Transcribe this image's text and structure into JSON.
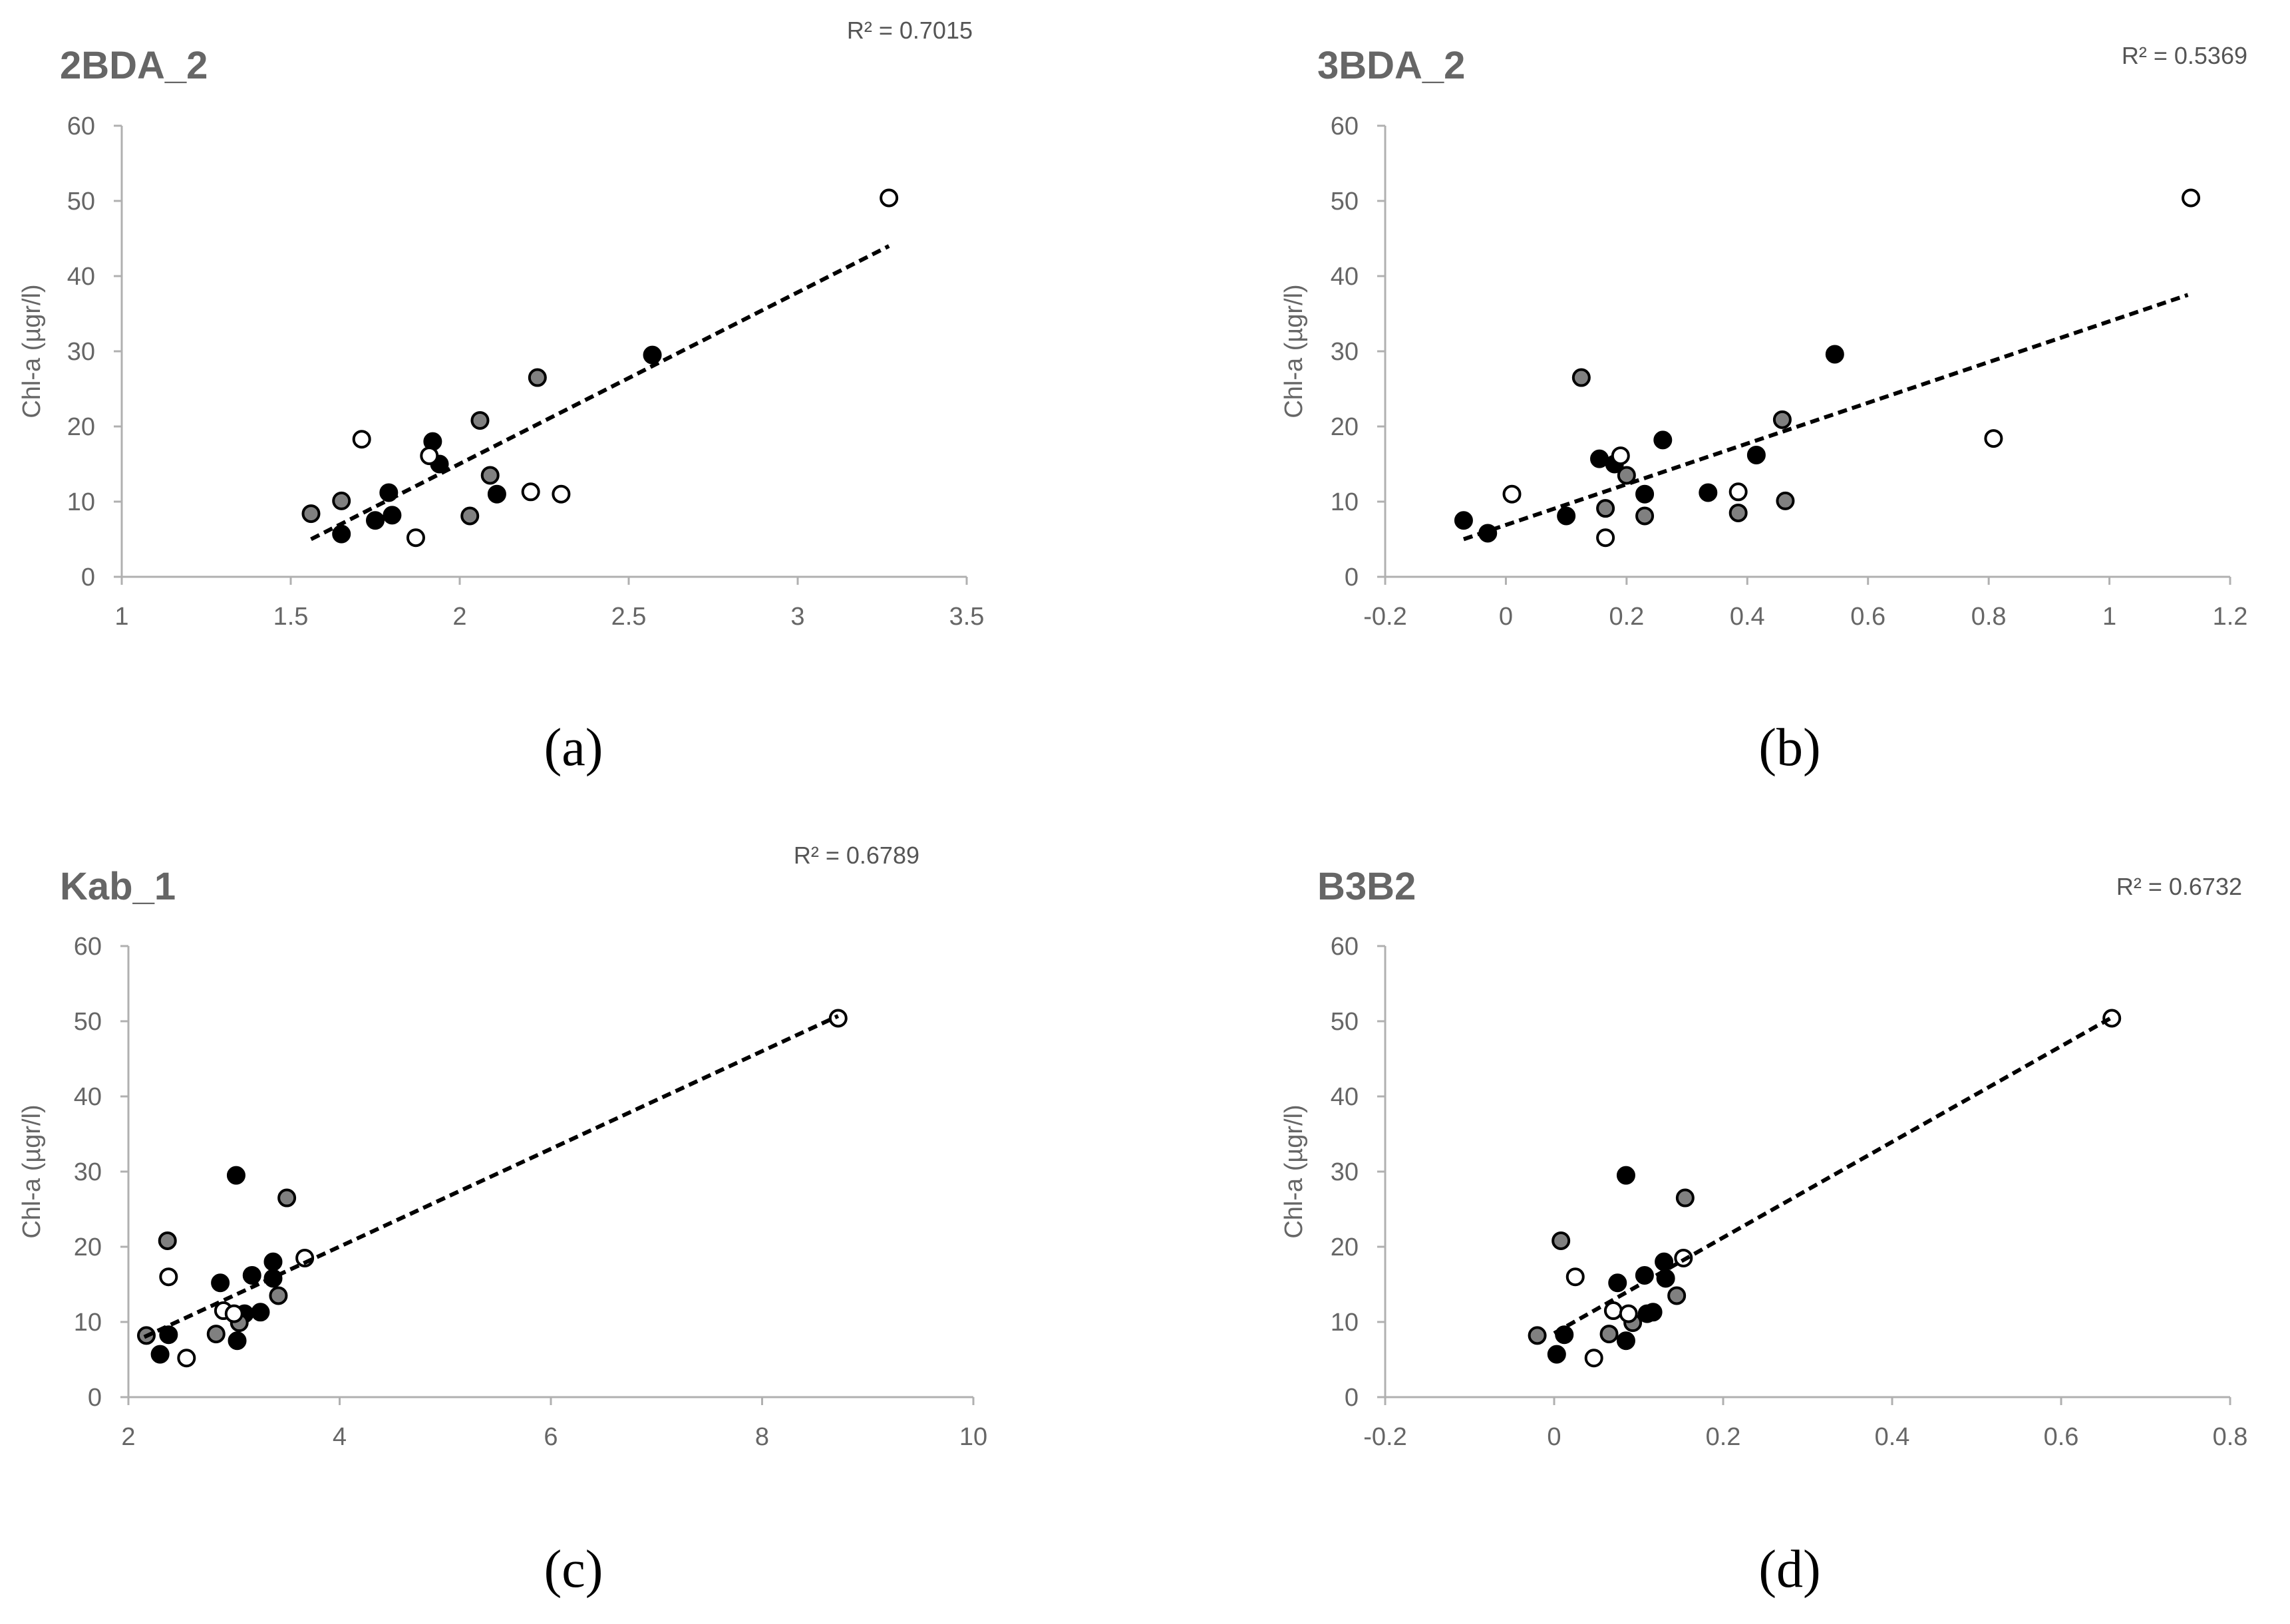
{
  "figure": {
    "description_labels": [
      "(a)",
      "(b)",
      "(c)",
      "(d)"
    ]
  },
  "chart_data": [
    {
      "type": "scatter",
      "title": "2BDA_2",
      "caption": "(a)",
      "r2": "R² = 0.7015",
      "ylabel": "Chl-a (µgr/l)",
      "xlabel": "",
      "xlim": [
        1,
        3.5
      ],
      "ylim": [
        0,
        60
      ],
      "xticks": [
        "1",
        "1.5",
        "2",
        "2.5",
        "3",
        "3.5"
      ],
      "xtick_values": [
        1,
        1.5,
        2,
        2.5,
        3,
        3.5
      ],
      "yticks": [
        "0",
        "10",
        "20",
        "30",
        "40",
        "50",
        "60"
      ],
      "ytick_values": [
        0,
        10,
        20,
        30,
        40,
        50,
        60
      ],
      "trendline": {
        "x": [
          1.56,
          3.27
        ],
        "y": [
          5.0,
          44.0
        ]
      },
      "series": [
        {
          "name": "black",
          "color": "#000000",
          "points": [
            [
              1.92,
              18
            ],
            [
              1.94,
              15
            ],
            [
              1.79,
              11.2
            ],
            [
              1.8,
              8.2
            ],
            [
              1.75,
              7.5
            ],
            [
              1.65,
              5.7
            ],
            [
              2.11,
              11
            ],
            [
              2.57,
              29.5
            ]
          ]
        },
        {
          "name": "gray",
          "color": "#808080",
          "points": [
            [
              2.23,
              26.5
            ],
            [
              2.06,
              20.8
            ],
            [
              2.09,
              13.5
            ],
            [
              2.03,
              8.1
            ],
            [
              1.65,
              10.1
            ],
            [
              1.56,
              8.4
            ]
          ]
        },
        {
          "name": "white",
          "color": "#ffffff",
          "points": [
            [
              3.27,
              50.4
            ],
            [
              1.71,
              18.3
            ],
            [
              1.91,
              16.1
            ],
            [
              2.21,
              11.3
            ],
            [
              2.3,
              11
            ],
            [
              1.87,
              5.2
            ]
          ]
        }
      ]
    },
    {
      "type": "scatter",
      "title": "3BDA_2",
      "caption": "(b)",
      "r2": "R² = 0.5369",
      "ylabel": "Chl-a (µgr/l)",
      "xlabel": "",
      "xlim": [
        -0.2,
        1.2
      ],
      "ylim": [
        0,
        60
      ],
      "xticks": [
        "-0.2",
        "0",
        "0.2",
        "0.4",
        "0.6",
        "0.8",
        "1",
        "1.2"
      ],
      "xtick_values": [
        -0.2,
        0,
        0.2,
        0.4,
        0.6,
        0.8,
        1,
        1.2
      ],
      "yticks": [
        "0",
        "10",
        "20",
        "30",
        "40",
        "50",
        "60"
      ],
      "ytick_values": [
        0,
        10,
        20,
        30,
        40,
        50,
        60
      ],
      "trendline": {
        "x": [
          -0.07,
          1.13
        ],
        "y": [
          5.0,
          37.5
        ]
      },
      "series": [
        {
          "name": "black",
          "color": "#000000",
          "points": [
            [
              0.545,
              29.6
            ],
            [
              0.26,
              18.2
            ],
            [
              0.415,
              16.2
            ],
            [
              0.155,
              15.7
            ],
            [
              0.18,
              15
            ],
            [
              0.335,
              11.2
            ],
            [
              0.23,
              11
            ],
            [
              0.1,
              8.1
            ],
            [
              -0.07,
              7.5
            ],
            [
              -0.03,
              5.8
            ]
          ]
        },
        {
          "name": "gray",
          "color": "#808080",
          "points": [
            [
              0.125,
              26.5
            ],
            [
              0.458,
              20.9
            ],
            [
              0.2,
              13.5
            ],
            [
              0.165,
              9.1
            ],
            [
              0.23,
              8.1
            ],
            [
              0.385,
              8.5
            ],
            [
              0.463,
              10.1
            ]
          ]
        },
        {
          "name": "white",
          "color": "#ffffff",
          "points": [
            [
              1.135,
              50.4
            ],
            [
              0.808,
              18.4
            ],
            [
              0.19,
              16.1
            ],
            [
              0.01,
              11
            ],
            [
              0.385,
              11.3
            ],
            [
              0.165,
              5.2
            ]
          ]
        }
      ]
    },
    {
      "type": "scatter",
      "title": "Kab_1",
      "caption": "(c)",
      "r2": "R² = 0.6789",
      "ylabel": "Chl-a (µgr/l)",
      "xlabel": "",
      "xlim": [
        2,
        10
      ],
      "ylim": [
        0,
        60
      ],
      "xticks": [
        "2",
        "4",
        "6",
        "8",
        "10"
      ],
      "xtick_values": [
        2,
        4,
        6,
        8,
        10
      ],
      "yticks": [
        "0",
        "10",
        "20",
        "30",
        "40",
        "50",
        "60"
      ],
      "ytick_values": [
        0,
        10,
        20,
        30,
        40,
        50,
        60
      ],
      "trendline": {
        "x": [
          2.15,
          8.72
        ],
        "y": [
          8.0,
          50.7
        ]
      },
      "series": [
        {
          "name": "black",
          "color": "#000000",
          "points": [
            [
              3.02,
              29.5
            ],
            [
              3.37,
              18
            ],
            [
              3.17,
              16.2
            ],
            [
              3.37,
              15.8
            ],
            [
              2.87,
              15.2
            ],
            [
              3.25,
              11.3
            ],
            [
              3.1,
              11.1
            ],
            [
              2.38,
              8.3
            ],
            [
              3.03,
              7.5
            ],
            [
              2.3,
              5.7
            ]
          ]
        },
        {
          "name": "gray",
          "color": "#808080",
          "points": [
            [
              3.5,
              26.5
            ],
            [
              2.37,
              20.8
            ],
            [
              3.42,
              13.5
            ],
            [
              3.05,
              9.9
            ],
            [
              2.83,
              8.4
            ],
            [
              2.17,
              8.2
            ]
          ]
        },
        {
          "name": "white",
          "color": "#ffffff",
          "points": [
            [
              8.72,
              50.4
            ],
            [
              3.67,
              18.5
            ],
            [
              2.38,
              16
            ],
            [
              2.9,
              11.5
            ],
            [
              3.0,
              11.1
            ],
            [
              2.55,
              5.2
            ]
          ]
        }
      ]
    },
    {
      "type": "scatter",
      "title": "B3B2",
      "caption": "(d)",
      "r2": "R² = 0.6732",
      "ylabel": "Chl-a (µgr/l)",
      "xlabel": "",
      "xlim": [
        -0.2,
        0.8
      ],
      "ylim": [
        0,
        60
      ],
      "xticks": [
        "-0.2",
        "0",
        "0.2",
        "0.4",
        "0.6",
        "0.8"
      ],
      "xtick_values": [
        -0.2,
        0,
        0.2,
        0.4,
        0.6,
        0.8
      ],
      "yticks": [
        "0",
        "10",
        "20",
        "30",
        "40",
        "50",
        "60"
      ],
      "ytick_values": [
        0,
        10,
        20,
        30,
        40,
        50,
        60
      ],
      "trendline": {
        "x": [
          0.0,
          0.66
        ],
        "y": [
          8.5,
          50.5
        ]
      },
      "series": [
        {
          "name": "black",
          "color": "#000000",
          "points": [
            [
              0.085,
              29.5
            ],
            [
              0.13,
              18
            ],
            [
              0.107,
              16.2
            ],
            [
              0.132,
              15.8
            ],
            [
              0.075,
              15.2
            ],
            [
              0.117,
              11.3
            ],
            [
              0.11,
              11.1
            ],
            [
              0.012,
              8.3
            ],
            [
              0.085,
              7.5
            ],
            [
              0.003,
              5.7
            ]
          ]
        },
        {
          "name": "gray",
          "color": "#808080",
          "points": [
            [
              0.155,
              26.5
            ],
            [
              0.008,
              20.8
            ],
            [
              0.145,
              13.5
            ],
            [
              0.093,
              9.9
            ],
            [
              0.065,
              8.4
            ],
            [
              -0.02,
              8.2
            ]
          ]
        },
        {
          "name": "white",
          "color": "#ffffff",
          "points": [
            [
              0.66,
              50.4
            ],
            [
              0.153,
              18.5
            ],
            [
              0.025,
              16
            ],
            [
              0.07,
              11.5
            ],
            [
              0.088,
              11.1
            ],
            [
              0.047,
              5.2
            ]
          ]
        }
      ]
    }
  ]
}
